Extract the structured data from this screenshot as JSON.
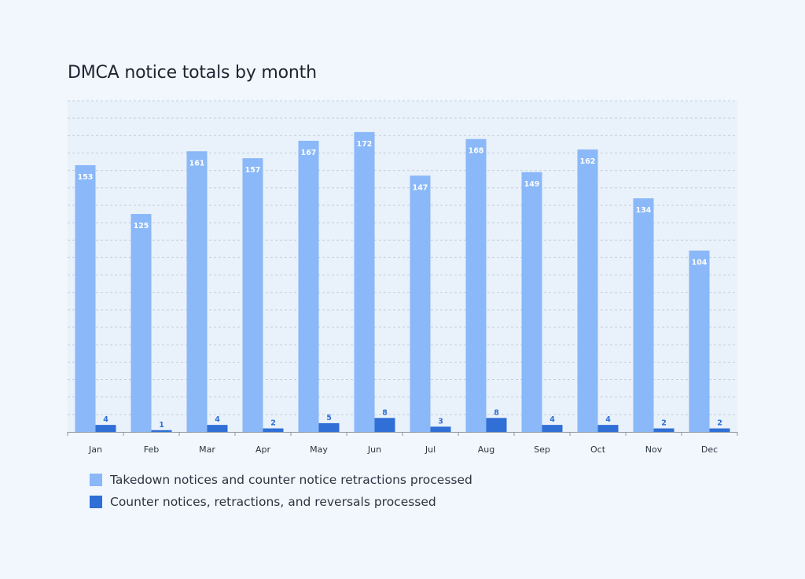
{
  "chart_data": {
    "type": "bar",
    "title": "DMCA notice totals by month",
    "categories": [
      "Jan",
      "Feb",
      "Mar",
      "Apr",
      "May",
      "Jun",
      "Jul",
      "Aug",
      "Sep",
      "Oct",
      "Nov",
      "Dec"
    ],
    "series": [
      {
        "name": "Takedown notices and counter notice retractions processed",
        "color": "#8ab8f8",
        "label_color": "#ffffff",
        "values": [
          153,
          125,
          161,
          157,
          167,
          172,
          147,
          168,
          149,
          162,
          134,
          104
        ]
      },
      {
        "name": "Counter notices, retractions, and reversals processed",
        "color": "#2f6fd6",
        "label_color": "#2f6fd6",
        "values": [
          4,
          1,
          4,
          2,
          5,
          8,
          3,
          8,
          4,
          4,
          2,
          2
        ]
      }
    ],
    "ylim": [
      0,
      190
    ],
    "grid": true,
    "legend": "bottom-left",
    "xlabel": "",
    "ylabel": ""
  }
}
